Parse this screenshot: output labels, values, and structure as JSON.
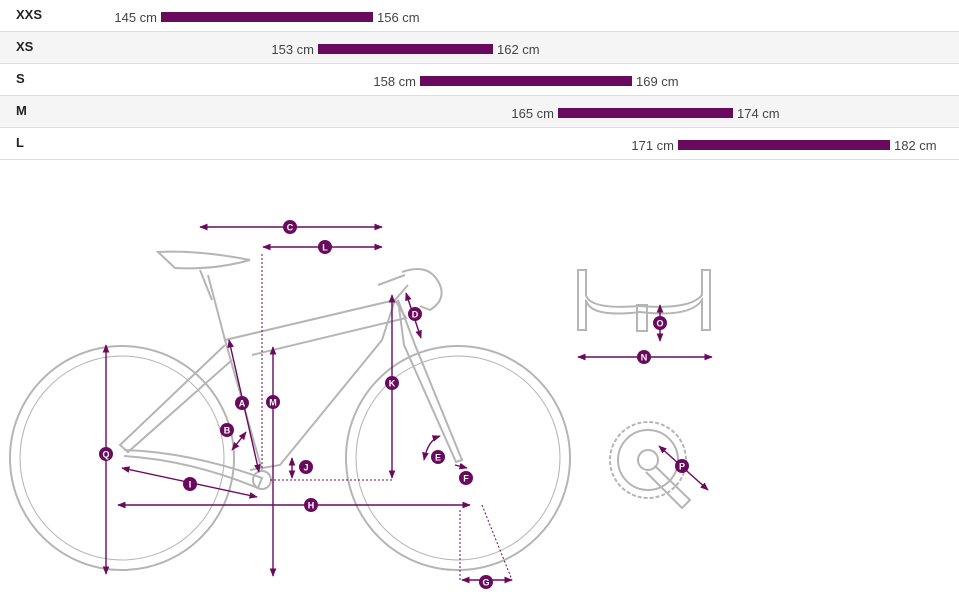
{
  "size_chart": {
    "rows": [
      {
        "size": "XXS",
        "min": "145 cm",
        "max": "156 cm"
      },
      {
        "size": "XS",
        "min": "153 cm",
        "max": "162 cm"
      },
      {
        "size": "S",
        "min": "158 cm",
        "max": "169 cm"
      },
      {
        "size": "M",
        "min": "165 cm",
        "max": "174 cm"
      },
      {
        "size": "L",
        "min": "171 cm",
        "max": "182 cm"
      }
    ]
  },
  "geometry": {
    "labels": {
      "A": "A",
      "B": "B",
      "C": "C",
      "D": "D",
      "E": "E",
      "F": "F",
      "G": "G",
      "H": "H",
      "I": "I",
      "J": "J",
      "K": "K",
      "L": "L",
      "M": "M",
      "N": "N",
      "O": "O",
      "P": "P",
      "Q": "Q"
    }
  },
  "colors": {
    "accent": "#6a0a5e",
    "frame": "#b5b5b5",
    "row_alt": "#f5f5f5"
  }
}
